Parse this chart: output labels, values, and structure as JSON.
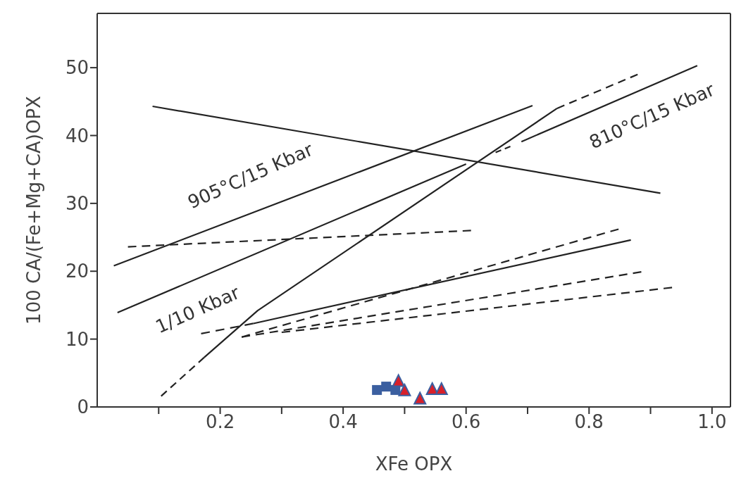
{
  "chart_data": {
    "type": "line",
    "xlabel": "XFe OPX",
    "ylabel": "100 CA/(Fe+Mg+CA)OPX",
    "xlim": [
      0,
      1.03
    ],
    "xticks": [
      {
        "value": 0.1,
        "label": null
      },
      0.2,
      {
        "value": 0.3,
        "label": null
      },
      0.4,
      {
        "value": 0.5,
        "label": null
      },
      0.6,
      {
        "value": 0.7,
        "label": null
      },
      0.8,
      {
        "value": 0.9,
        "label": null
      },
      {
        "value": 1.0,
        "label": "1.0"
      }
    ],
    "ylim": [
      0,
      58
    ],
    "yticks": [
      0,
      10,
      20,
      30,
      40,
      50
    ],
    "marker": "none",
    "series": [
      {
        "color": "#222222",
        "line_style": "solid",
        "x": [
          0.09,
          0.916
        ],
        "values": [
          44.3,
          31.5
        ]
      },
      {
        "color": "#222222",
        "line_style": "solid",
        "x": [
          0.027,
          0.708
        ],
        "values": [
          20.8,
          44.4
        ]
      },
      {
        "color": "#222222",
        "line_style": "solid",
        "x": [
          0.033,
          0.6
        ],
        "values": [
          13.9,
          35.8
        ]
      },
      {
        "color": "#222222",
        "line_style": "dashed",
        "x": [
          0.648,
          0.672
        ],
        "values": [
          37.5,
          38.4
        ]
      },
      {
        "color": "#222222",
        "line_style": "solid",
        "x": [
          0.69,
          0.976
        ],
        "values": [
          39.1,
          50.3
        ]
      },
      {
        "color": "#222222",
        "line_style": "dashed",
        "x": [
          0.104,
          0.174
        ],
        "values": [
          1.6,
          7.3
        ]
      },
      {
        "color": "#222222",
        "line_style": "solid",
        "x": [
          0.174,
          0.261,
          0.748
        ],
        "values": [
          7.3,
          14.2,
          44.0
        ]
      },
      {
        "color": "#222222",
        "line_style": "dashed",
        "x": [
          0.748,
          0.879
        ],
        "values": [
          44.0,
          49.0
        ]
      },
      {
        "color": "#222222",
        "line_style": "dashed",
        "x": [
          0.05,
          0.608
        ],
        "values": [
          23.6,
          26.0
        ]
      },
      {
        "color": "#222222",
        "line_style": "dashed",
        "x": [
          0.169,
          0.254
        ],
        "values": [
          10.8,
          12.3
        ]
      },
      {
        "color": "#222222",
        "line_style": "solid",
        "x": [
          0.254,
          0.868
        ],
        "values": [
          12.3,
          24.6
        ]
      },
      {
        "color": "#222222",
        "line_style": "dashed",
        "x": [
          0.235,
          0.848
        ],
        "values": [
          10.3,
          26.2
        ]
      },
      {
        "color": "#222222",
        "line_style": "dashed",
        "x": [
          0.235,
          0.885
        ],
        "values": [
          10.3,
          19.9
        ]
      },
      {
        "color": "#222222",
        "line_style": "dashed",
        "x": [
          0.3,
          0.935
        ],
        "values": [
          11.0,
          17.6
        ]
      },
      {
        "type": "scatter",
        "marker": "square",
        "color": "#3b5fa0",
        "x": [
          0.455,
          0.47,
          0.485
        ],
        "values": [
          2.5,
          3.0,
          2.5
        ]
      },
      {
        "type": "scatter",
        "marker": "triangle",
        "color": "#d8202a",
        "x": [
          0.49,
          0.5,
          0.525,
          0.545,
          0.56
        ],
        "values": [
          3.8,
          2.4,
          1.2,
          2.6,
          2.6
        ]
      }
    ],
    "annotations": [
      "905°C/15 Kbar",
      "1/10 Kbar",
      "810°C/15 Kbar"
    ]
  }
}
